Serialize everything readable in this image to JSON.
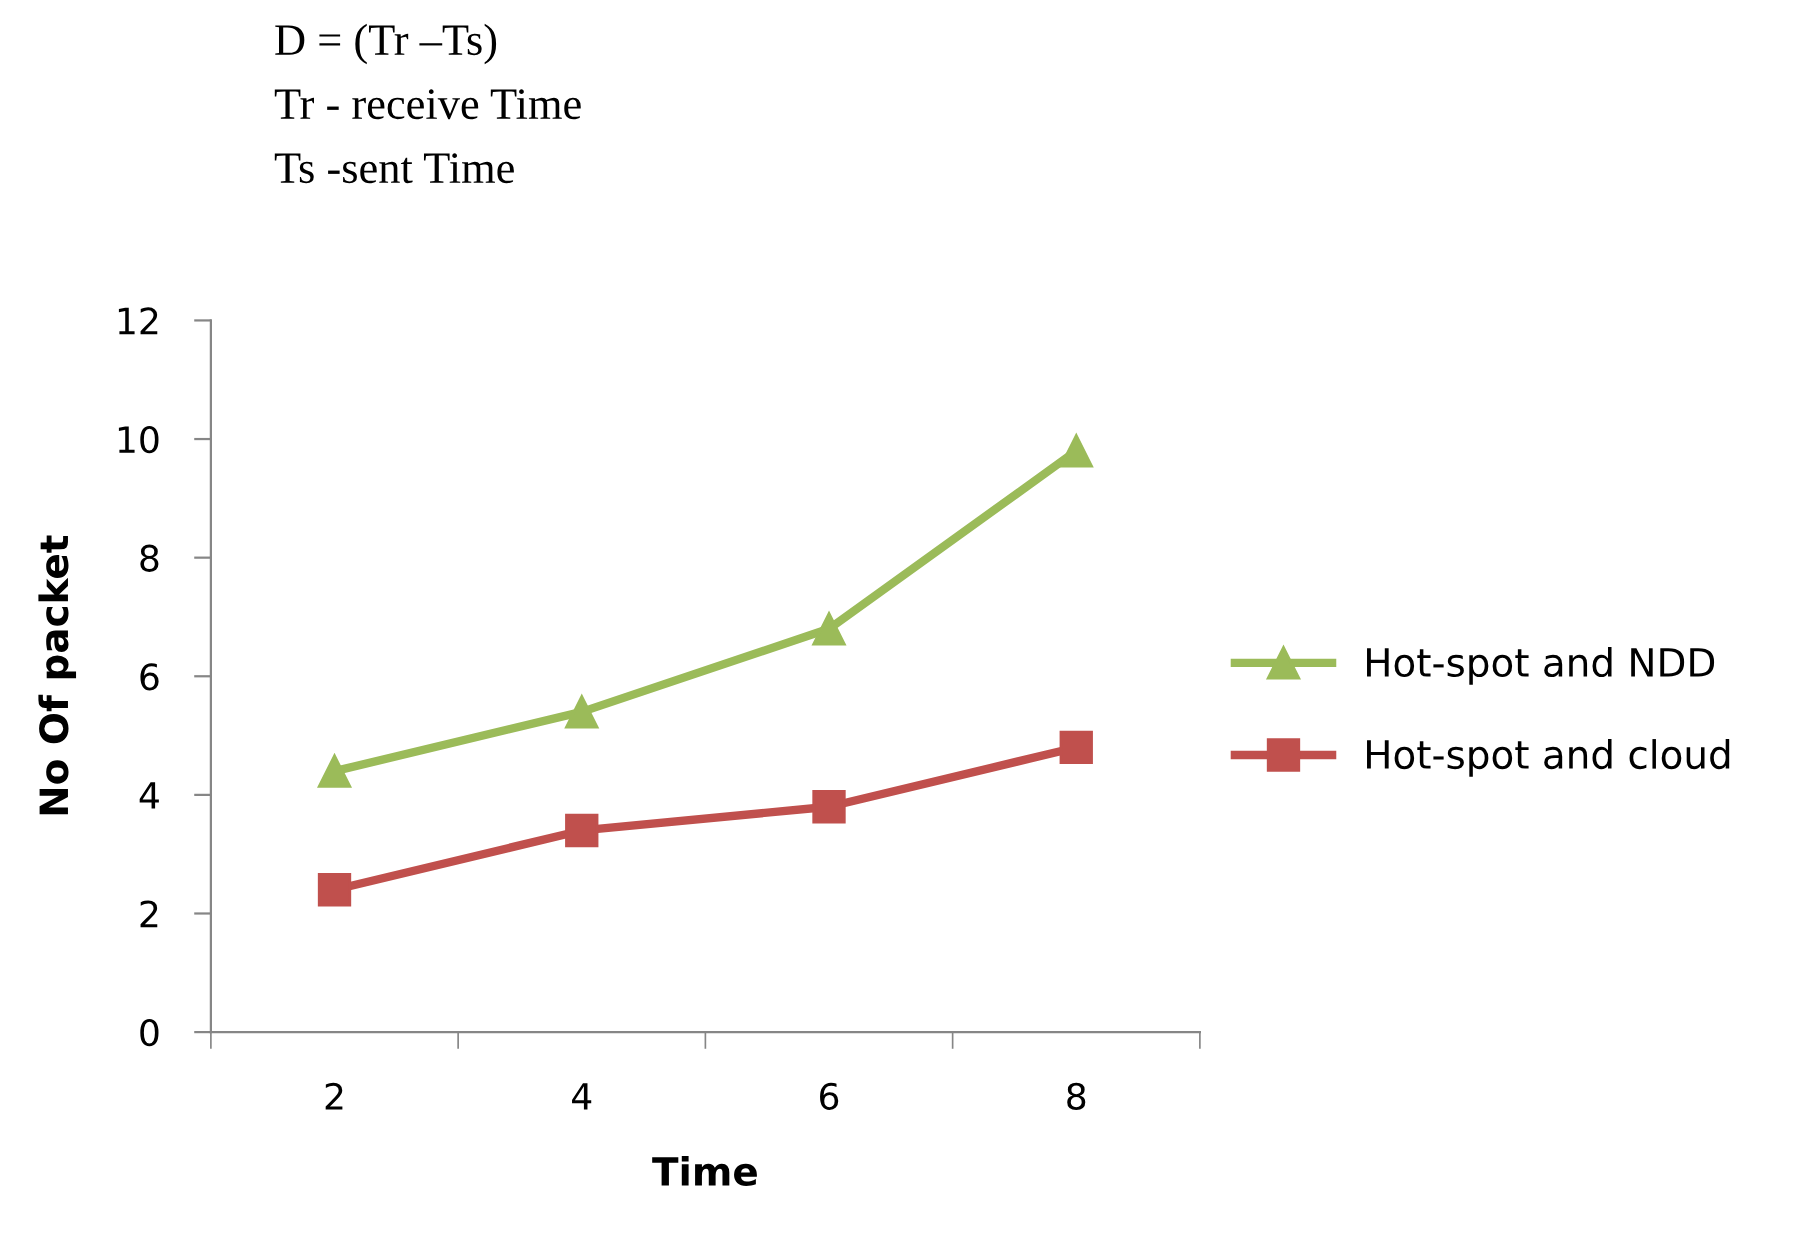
{
  "chart_data": {
    "type": "line",
    "xlabel": "Time",
    "ylabel": "No Of packet",
    "annotations": [
      "D = (Tr –Ts)",
      "Tr - receive Time",
      "Ts -sent Time"
    ],
    "categories": [
      "2",
      "4",
      "6",
      "8"
    ],
    "series": [
      {
        "name": "Hot-spot and NDD",
        "color": "#9bbb59",
        "marker": "triangle",
        "values": [
          4.4,
          5.4,
          6.8,
          9.8
        ]
      },
      {
        "name": "Hot-spot and cloud",
        "color": "#c0504d",
        "marker": "square",
        "values": [
          2.4,
          3.4,
          3.8,
          4.8
        ]
      }
    ],
    "ylim": [
      0,
      12
    ],
    "yticks": [
      0,
      2,
      4,
      6,
      8,
      10,
      12
    ],
    "grid": false,
    "legend": "right",
    "line_style": "solid"
  }
}
